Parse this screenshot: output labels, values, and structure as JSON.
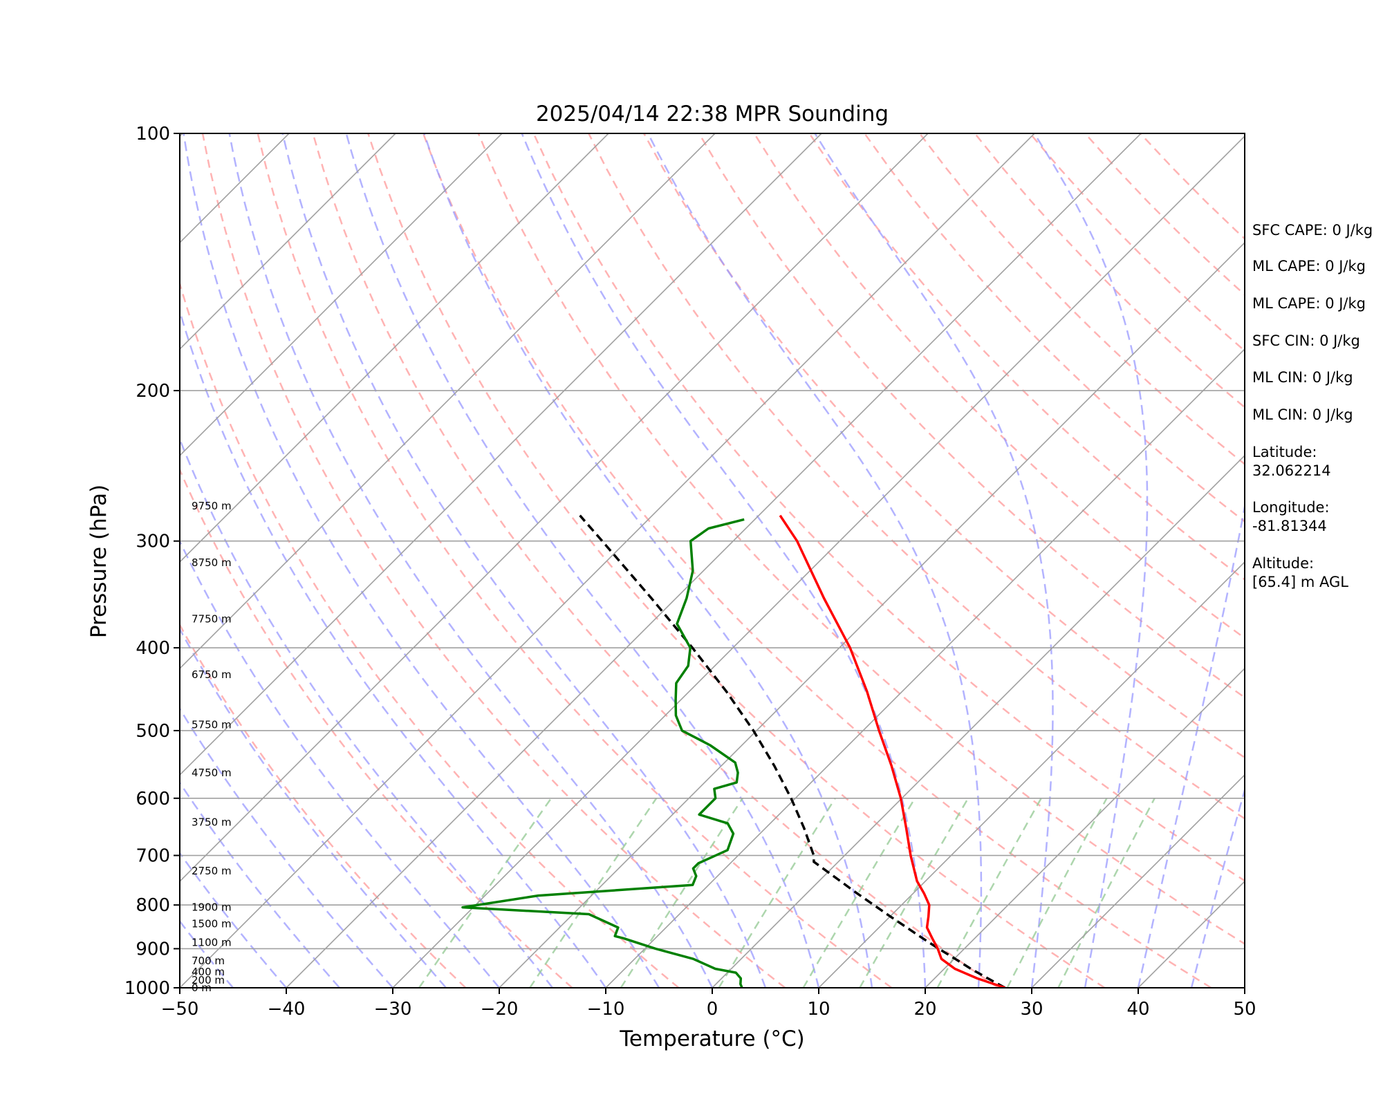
{
  "chart_data": {
    "type": "line",
    "title": "2025/04/14 22:38 MPR Sounding",
    "xlabel": "Temperature (°C)",
    "ylabel": "Pressure (hPa)",
    "xlim": [
      -50,
      50
    ],
    "ylim": [
      1000,
      100
    ],
    "yscale": "log",
    "xticks": [
      -50,
      -40,
      -30,
      -20,
      -10,
      0,
      10,
      20,
      30,
      40,
      50
    ],
    "xtick_labels": [
      "−50",
      "−40",
      "−30",
      "−20",
      "−10",
      "0",
      "10",
      "20",
      "30",
      "40",
      "50"
    ],
    "yticks": [
      100,
      200,
      300,
      400,
      500,
      600,
      700,
      800,
      900,
      1000
    ],
    "ytick_labels": [
      "100",
      "200",
      "300",
      "400",
      "500",
      "600",
      "700",
      "800",
      "900",
      "1000"
    ],
    "grid": true,
    "colors": {
      "temperature": "#ff0000",
      "dewpoint": "#008000",
      "parcel": "#000000",
      "dry_adiabat": "#ff9999",
      "moist_adiabat": "#9999ff",
      "mixing_ratio": "#99cc99",
      "isotherm": "#a0a0a0",
      "isobar": "#a0a0a0"
    },
    "temperature": {
      "p": [
        1000,
        975,
        950,
        925,
        900,
        875,
        850,
        825,
        800,
        775,
        750,
        700,
        650,
        600,
        550,
        500,
        450,
        400,
        350,
        300,
        280
      ],
      "t": [
        27.5,
        24.0,
        21.0,
        18.8,
        17.5,
        16.0,
        14.5,
        13.6,
        12.6,
        11.0,
        9.2,
        6.2,
        3.2,
        -0.1,
        -4.0,
        -8.5,
        -13.3,
        -19.0,
        -26.1,
        -34.0,
        -38.0
      ]
    },
    "dewpoint": {
      "p": [
        1000,
        990,
        975,
        960,
        950,
        925,
        900,
        875,
        870,
        850,
        820,
        805,
        780,
        758,
        740,
        725,
        715,
        690,
        660,
        642,
        627,
        600,
        585,
        575,
        560,
        545,
        520,
        500,
        480,
        460,
        440,
        420,
        400,
        375,
        350,
        325,
        300,
        290,
        283
      ],
      "td": [
        2.8,
        2.3,
        1.8,
        0.8,
        -1.5,
        -4.5,
        -9.0,
        -13.0,
        -14.0,
        -14.5,
        -18.5,
        -31.0,
        -25.0,
        -11.5,
        -12.0,
        -13.0,
        -13.0,
        -11.5,
        -12.5,
        -14.0,
        -17.5,
        -17.5,
        -18.5,
        -17.0,
        -17.8,
        -19.0,
        -23.0,
        -27.0,
        -29.0,
        -30.5,
        -32.0,
        -32.5,
        -34.0,
        -37.5,
        -39.0,
        -41.0,
        -44.0,
        -43.5,
        -41.0
      ]
    },
    "parcel": {
      "p": [
        1000,
        975,
        950,
        925,
        900,
        875,
        850,
        825,
        800,
        775,
        750,
        725,
        712,
        700,
        650,
        600,
        550,
        500,
        450,
        400,
        350,
        300,
        280
      ],
      "t": [
        27.5,
        25.0,
        22.5,
        20.1,
        17.6,
        15.1,
        12.6,
        10.0,
        7.4,
        4.7,
        2.0,
        -0.8,
        -2.3,
        -2.9,
        -6.4,
        -10.4,
        -15.0,
        -20.3,
        -26.5,
        -33.8,
        -42.3,
        -52.3,
        -56.8
      ]
    },
    "dry_adiabats_K": [
      250,
      260,
      270,
      280,
      290,
      300,
      310,
      320,
      330,
      340,
      350,
      360,
      370,
      380,
      390,
      400,
      410,
      420,
      430,
      440,
      450
    ],
    "moist_adiabats_surface_C": [
      -45,
      -40,
      -35,
      -30,
      -25,
      -20,
      -15,
      -10,
      -5,
      0,
      5,
      10,
      15,
      20,
      25,
      30,
      35,
      40,
      45
    ],
    "mixing_ratio_lines_gkg": [
      0.4,
      1,
      2,
      4,
      7,
      10,
      16,
      24,
      32
    ],
    "height_labels": [
      "0 m",
      "200 m",
      "400 m",
      "700 m",
      "1100 m",
      "1500 m",
      "1900 m",
      "2750 m",
      "3750 m",
      "4750 m",
      "5750 m",
      "6750 m",
      "7750 m",
      "8750 m",
      "9750 m"
    ],
    "height_label_pressures": [
      1000,
      980,
      958,
      930,
      885,
      842,
      805,
      730,
      640,
      560,
      492,
      430,
      370,
      318,
      273
    ]
  },
  "info_panel": [
    "SFC CAPE: 0 J/kg",
    "ML CAPE: 0 J/kg",
    "ML CAPE: 0 J/kg",
    "SFC CIN: 0 J/kg",
    "ML CIN: 0 J/kg",
    "ML CIN: 0 J/kg",
    "Latitude:",
    "32.062214",
    "Longitude:",
    "-81.81344",
    "Altitude:",
    "[65.4] m AGL"
  ]
}
